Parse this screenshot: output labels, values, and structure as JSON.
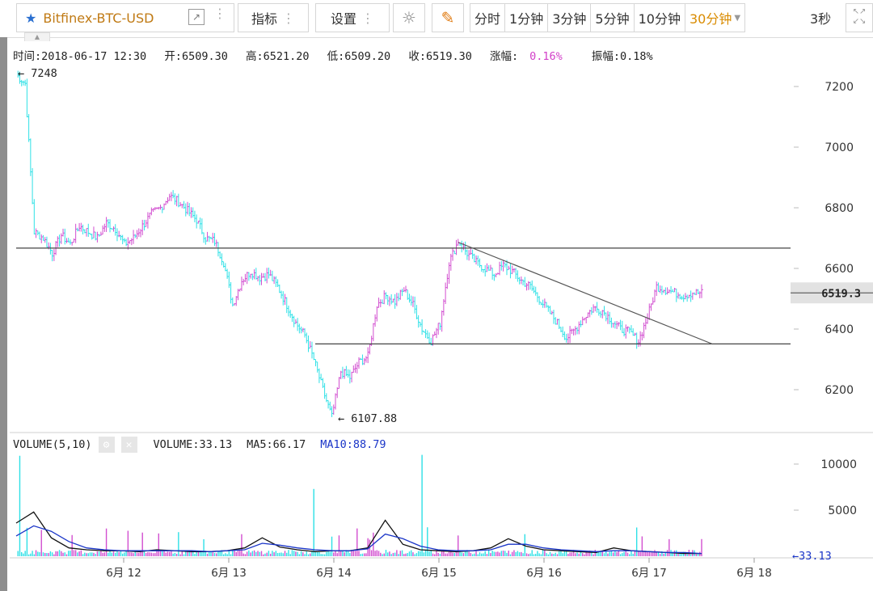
{
  "toolbar": {
    "symbol": "Bitfinex-BTC-USD",
    "indicators_label": "指标",
    "settings_label": "设置",
    "periods": [
      "分时",
      "1分钟",
      "3分钟",
      "5分钟",
      "10分钟",
      "30分钟"
    ],
    "active_period": "30分钟",
    "refresh": "3秒"
  },
  "info": {
    "time": "时间:2018-06-17 12:30",
    "open": "开:6509.30",
    "high": "高:6521.20",
    "low": "低:6509.20",
    "close": "收:6519.30",
    "change_label": "涨幅:",
    "change_value": "0.16%",
    "amplitude": "振幅:0.18%"
  },
  "volume_bar": {
    "name": "VOLUME(5,10)",
    "volume": "VOLUME:33.13",
    "ma5": "MA5:66.17",
    "ma10": "MA10:88.79"
  },
  "colors": {
    "up": "#d24fd0",
    "down": "#2ee0e6",
    "ma5": "#111111",
    "ma10": "#1a35c8"
  },
  "chart_data": [
    {
      "type": "candlestick",
      "title": "Bitfinex-BTC-USD 30分钟",
      "x_ticks": [
        "6月 12",
        "6月 13",
        "6月 14",
        "6月 15",
        "6月 16",
        "6月 17",
        "6月 18"
      ],
      "y_ticks": [
        "6200",
        "6400",
        "6600",
        "6800",
        "7000",
        "7200"
      ],
      "ylim": [
        6090,
        7270
      ],
      "annotations": {
        "high_marker": "7248",
        "low_marker": "6107.88",
        "last_price": "6519.3"
      },
      "support_resistance": [
        6667,
        6351
      ],
      "trendline": [
        [
          6686,
          6350
        ]
      ],
      "close_path": [
        7240,
        7210,
        6720,
        6700,
        6650,
        6710,
        6680,
        6740,
        6720,
        6700,
        6750,
        6730,
        6680,
        6700,
        6740,
        6780,
        6800,
        6840,
        6820,
        6790,
        6760,
        6700,
        6690,
        6620,
        6480,
        6560,
        6590,
        6570,
        6580,
        6540,
        6480,
        6420,
        6380,
        6300,
        6200,
        6110,
        6260,
        6240,
        6290,
        6310,
        6480,
        6510,
        6490,
        6530,
        6480,
        6400,
        6360,
        6420,
        6620,
        6690,
        6650,
        6620,
        6600,
        6580,
        6610,
        6590,
        6560,
        6540,
        6500,
        6460,
        6420,
        6370,
        6400,
        6440,
        6470,
        6460,
        6430,
        6400,
        6390,
        6360,
        6440,
        6540,
        6530,
        6520,
        6510,
        6520,
        6519
      ]
    },
    {
      "type": "bar",
      "title": "VOLUME(5,10)",
      "y_ticks": [
        "5000",
        "10000"
      ],
      "ylim": [
        0,
        11000
      ],
      "last_volume": "33.13",
      "series": [
        {
          "name": "MA5",
          "values": [
            3600,
            4800,
            2000,
            900,
            700,
            600,
            600,
            500,
            700,
            600,
            500,
            500,
            600,
            900,
            2000,
            1000,
            700,
            500,
            600,
            600,
            900,
            3900,
            1300,
            700,
            600,
            500,
            600,
            900,
            1900,
            1100,
            700,
            600,
            500,
            400,
            900,
            600,
            500,
            400,
            300,
            300
          ]
        },
        {
          "name": "MA10",
          "values": [
            2200,
            3300,
            2700,
            1600,
            900,
            700,
            600,
            600,
            600,
            600,
            600,
            500,
            600,
            700,
            1400,
            1200,
            900,
            700,
            600,
            600,
            800,
            2400,
            1900,
            1100,
            700,
            600,
            600,
            700,
            1300,
            1300,
            900,
            700,
            600,
            500,
            600,
            600,
            500,
            400,
            400,
            300
          ]
        }
      ]
    }
  ]
}
